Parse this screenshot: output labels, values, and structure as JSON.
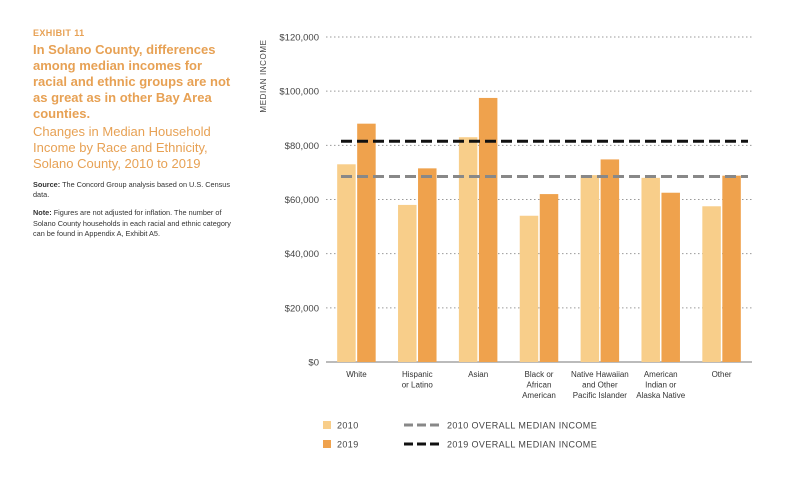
{
  "exhibit": "EXHIBIT 11",
  "headline": "In Solano County, differences among median incomes for racial and ethnic groups are not as great as in other Bay Area counties.",
  "subtitle": "Changes in Median Household Income by Race and Ethnicity, Solano County, 2010 to 2019",
  "source_label": "Source:",
  "source_text": "The Concord Group analysis based on U.S. Census data.",
  "note_label": "Note:",
  "note_text": "Figures are not adjusted for inflation. The number of Solano County households in each racial and ethnic category can be found in Appendix A, Exhibit A5.",
  "colors": {
    "s2010": "#F8CE8A",
    "s2019": "#EFA24D",
    "line2010": "#888888",
    "line2019": "#111111",
    "grid": "#9a9a9a"
  },
  "chart_data": {
    "type": "bar",
    "ylabel": "MEDIAN INCOME",
    "ylim": [
      0,
      120000
    ],
    "yticks": [
      0,
      20000,
      40000,
      60000,
      80000,
      100000,
      120000
    ],
    "ytick_labels": [
      "$0",
      "$20,000",
      "$40,000",
      "$60,000",
      "$80,000",
      "$100,000",
      "$120,000"
    ],
    "grid": true,
    "categories": [
      [
        "White"
      ],
      [
        "Hispanic",
        "or Latino"
      ],
      [
        "Asian"
      ],
      [
        "Black or",
        "African",
        "American"
      ],
      [
        "Native Hawaiian",
        "and Other",
        "Pacific Islander"
      ],
      [
        "American",
        "Indian or",
        "Alaska Native"
      ],
      [
        "Other"
      ]
    ],
    "series": [
      {
        "name": "2010",
        "values": [
          73000,
          58000,
          83000,
          54000,
          69000,
          68000,
          57500
        ]
      },
      {
        "name": "2019",
        "values": [
          88000,
          71500,
          97500,
          62000,
          74800,
          62500,
          68800
        ]
      }
    ],
    "reference_lines": [
      {
        "name": "2010 OVERALL MEDIAN INCOME",
        "value": 68500
      },
      {
        "name": "2019 OVERALL MEDIAN INCOME",
        "value": 81500
      }
    ],
    "legend_position": "bottom"
  }
}
